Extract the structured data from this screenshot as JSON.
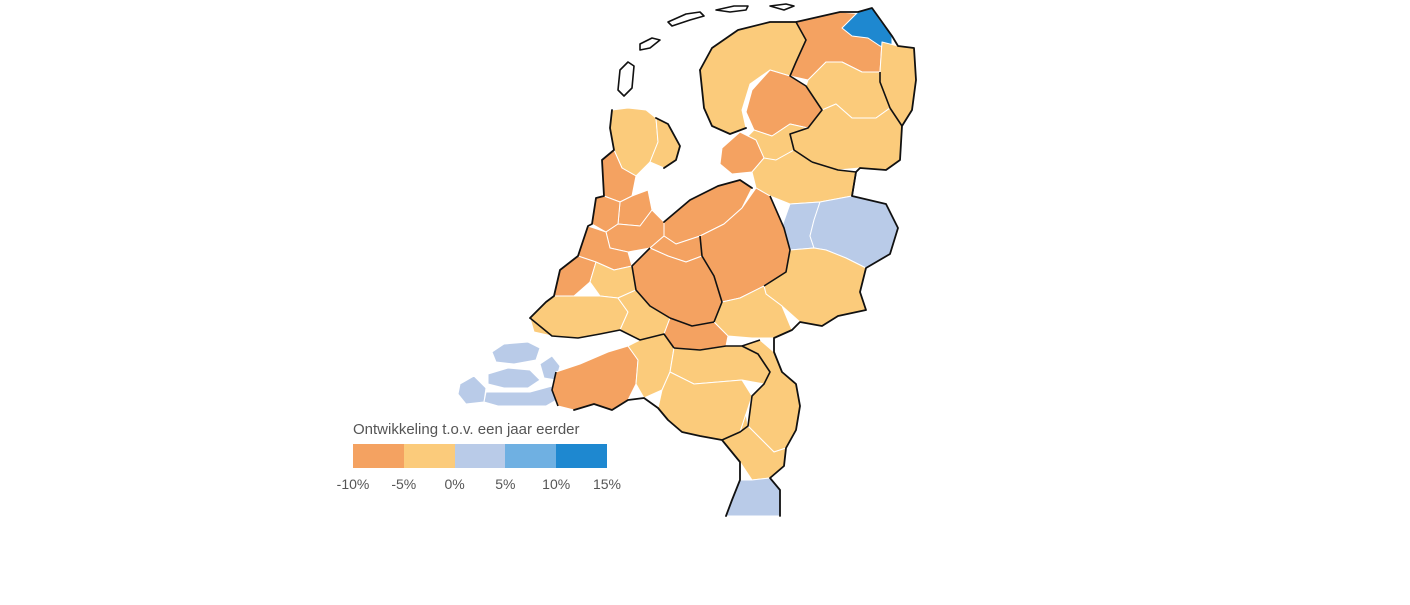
{
  "legend": {
    "title": "Ontwikkeling t.o.v. een jaar eerder",
    "ticks": [
      "-10%",
      "-5%",
      "0%",
      "5%",
      "10%",
      "15%"
    ],
    "bins": [
      {
        "range": "-10% to -5%",
        "color": "#f4a261"
      },
      {
        "range": "-5% to 0%",
        "color": "#fbcb7b"
      },
      {
        "range": "0% to 5%",
        "color": "#b9cbe8"
      },
      {
        "range": "5% to 10%",
        "color": "#6fb0e2"
      },
      {
        "range": "10% to 15%",
        "color": "#1e88d0"
      }
    ]
  }
}
